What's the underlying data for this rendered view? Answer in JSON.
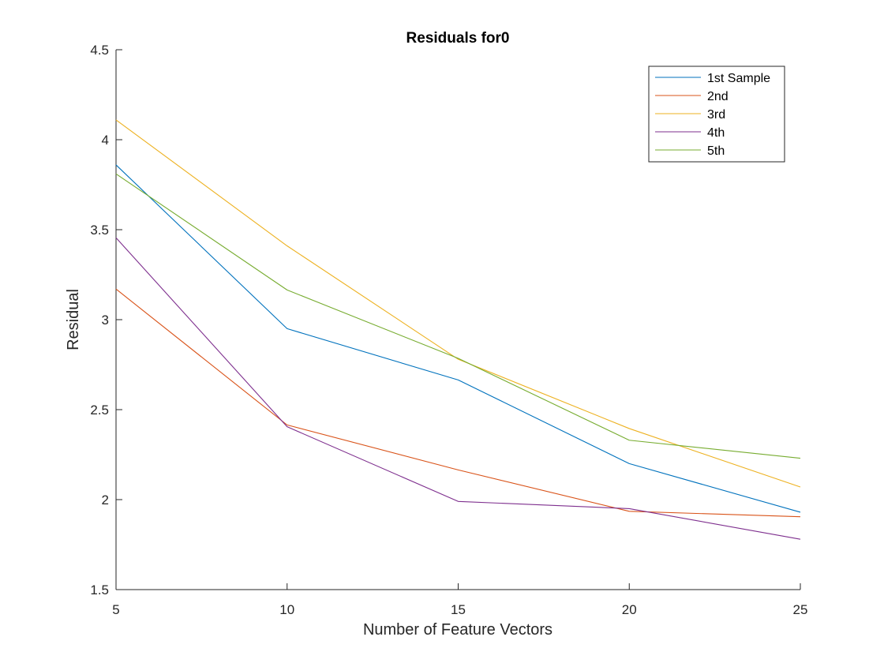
{
  "chart_data": {
    "type": "line",
    "title": "Residuals for0",
    "xlabel": "Number of Feature Vectors",
    "ylabel": "Residual",
    "x": [
      5,
      10,
      15,
      20,
      25
    ],
    "xlim": [
      5,
      25
    ],
    "ylim": [
      1.5,
      4.5
    ],
    "xticks": [
      5,
      10,
      15,
      20,
      25
    ],
    "yticks": [
      1.5,
      2,
      2.5,
      3,
      3.5,
      4,
      4.5
    ],
    "xtick_labels": [
      "5",
      "10",
      "15",
      "20",
      "25"
    ],
    "ytick_labels": [
      "1.5",
      "2",
      "2.5",
      "3",
      "3.5",
      "4",
      "4.5"
    ],
    "grid": false,
    "legend_position": "top-right",
    "series": [
      {
        "name": "1st Sample",
        "color": "#0072BD",
        "values": [
          3.86,
          2.95,
          2.665,
          2.2,
          1.93
        ]
      },
      {
        "name": "2nd",
        "color": "#D95319",
        "values": [
          3.17,
          2.415,
          2.165,
          1.935,
          1.905
        ]
      },
      {
        "name": "3rd",
        "color": "#EDB120",
        "values": [
          4.11,
          3.41,
          2.78,
          2.395,
          2.07
        ]
      },
      {
        "name": "4th",
        "color": "#7E2F8E",
        "values": [
          3.455,
          2.405,
          1.99,
          1.95,
          1.78
        ]
      },
      {
        "name": "5th",
        "color": "#77AC30",
        "values": [
          3.81,
          3.165,
          2.785,
          2.33,
          2.23
        ]
      }
    ]
  }
}
